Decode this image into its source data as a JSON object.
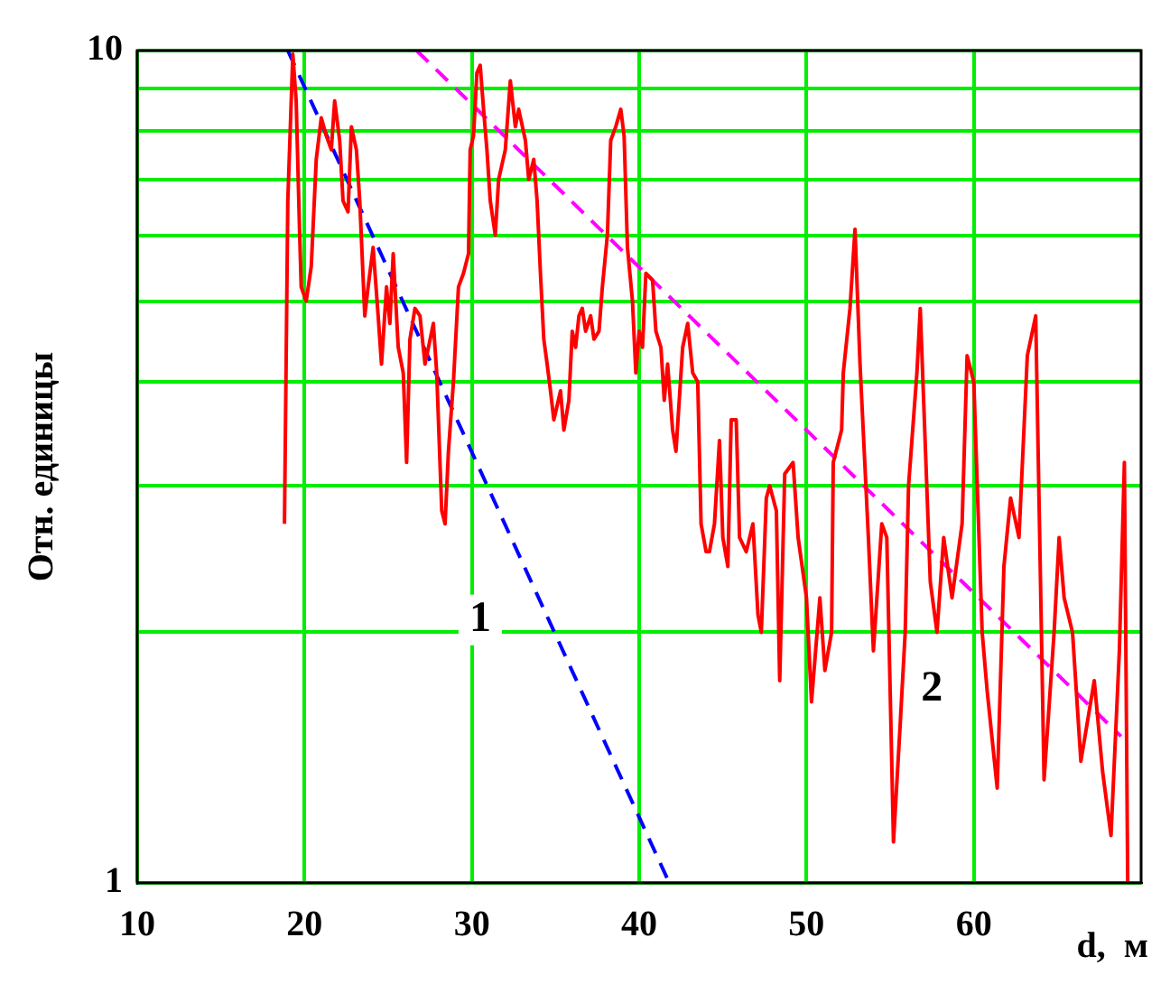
{
  "chart_data": {
    "type": "line",
    "xlabel": "d,  м",
    "ylabel": "Отн. единицы",
    "xlim": [
      10,
      70
    ],
    "xticks": [
      10,
      20,
      30,
      40,
      50,
      60
    ],
    "ylim": [
      1,
      10
    ],
    "yticks": [
      1,
      {
        "value": 2,
        "label": null
      },
      {
        "value": 3,
        "label": null
      },
      {
        "value": 4,
        "label": null
      },
      {
        "value": 5,
        "label": null
      },
      {
        "value": 6,
        "label": null
      },
      {
        "value": 7,
        "label": null
      },
      {
        "value": 8,
        "label": null
      },
      {
        "value": 9,
        "label": null
      },
      10
    ],
    "log": true,
    "grid": true,
    "legend": false,
    "series": [
      {
        "color": "#ff0000",
        "x": [
          18.8,
          19.0,
          19.3,
          19.5,
          19.7,
          19.8,
          20.1,
          20.4,
          20.7,
          21.0,
          21.3,
          21.6,
          21.8,
          22.1,
          22.3,
          22.6,
          22.8,
          23.1,
          23.3,
          23.6,
          23.8,
          24.1,
          24.4,
          24.6,
          24.9,
          25.1,
          25.3,
          25.6,
          25.9,
          26.1,
          26.3,
          26.6,
          26.9,
          27.2,
          27.7,
          27.9,
          28.2,
          28.4,
          28.6,
          28.9,
          29.2,
          29.5,
          29.8,
          29.9,
          30.1,
          30.3,
          30.5,
          30.7,
          30.9,
          31.1,
          31.4,
          31.6,
          32.0,
          32.3,
          32.6,
          32.8,
          33.2,
          33.4,
          33.7,
          33.9,
          34.1,
          34.3,
          34.5,
          34.7,
          34.9,
          35.3,
          35.5,
          35.8,
          36.0,
          36.2,
          36.4,
          36.6,
          36.8,
          37.1,
          37.3,
          37.6,
          37.8,
          38.1,
          38.3,
          38.6,
          38.9,
          39.1,
          39.3,
          39.6,
          39.8,
          40.0,
          40.2,
          40.4,
          40.8,
          41.0,
          41.3,
          41.5,
          41.7,
          42.0,
          42.2,
          42.6,
          42.9,
          43.2,
          43.5,
          43.7,
          44.0,
          44.2,
          44.5,
          44.8,
          45.0,
          45.3,
          45.5,
          45.8,
          46.0,
          46.4,
          46.8,
          47.1,
          47.3,
          47.6,
          47.8,
          48.2,
          48.4,
          48.7,
          49.2,
          49.5,
          50.0,
          50.3,
          50.8,
          51.1,
          51.5,
          51.6,
          52.1,
          52.2,
          52.6,
          52.9,
          53.2,
          53.7,
          54.0,
          54.5,
          54.8,
          55.2,
          55.6,
          55.9,
          56.1,
          56.6,
          56.8,
          57.4,
          57.8,
          58.2,
          58.7,
          59.3,
          59.6,
          60.0,
          60.5,
          60.8,
          61.4,
          61.8,
          62.2,
          62.7,
          63.2,
          63.7,
          64.2,
          64.8,
          65.1,
          65.4,
          65.9,
          66.4,
          67.2,
          67.7,
          68.2,
          68.7,
          69.0,
          69.2
        ],
        "values": [
          2.7,
          6.6,
          9.9,
          8.7,
          6.1,
          5.2,
          5.0,
          5.5,
          7.4,
          8.3,
          7.9,
          7.6,
          8.7,
          7.8,
          6.6,
          6.4,
          8.1,
          7.6,
          6.6,
          4.8,
          5.2,
          5.8,
          4.8,
          4.2,
          5.2,
          4.7,
          5.7,
          4.4,
          4.1,
          3.2,
          4.5,
          4.9,
          4.8,
          4.2,
          4.7,
          4.1,
          2.8,
          2.7,
          3.3,
          4.0,
          5.2,
          5.4,
          5.7,
          7.6,
          7.9,
          9.4,
          9.6,
          8.5,
          7.6,
          6.6,
          6.0,
          7.0,
          7.6,
          9.2,
          8.1,
          8.5,
          7.8,
          7.0,
          7.4,
          6.6,
          5.4,
          4.5,
          4.2,
          3.9,
          3.6,
          3.9,
          3.5,
          3.8,
          4.6,
          4.4,
          4.8,
          4.9,
          4.6,
          4.8,
          4.5,
          4.6,
          5.2,
          6.0,
          7.8,
          8.1,
          8.5,
          7.9,
          5.8,
          5.0,
          4.1,
          4.6,
          4.4,
          5.4,
          5.3,
          4.6,
          4.4,
          3.8,
          4.2,
          3.5,
          3.3,
          4.4,
          4.7,
          4.1,
          4.0,
          2.7,
          2.5,
          2.5,
          2.7,
          3.4,
          2.6,
          2.4,
          3.6,
          3.6,
          2.6,
          2.5,
          2.7,
          2.1,
          2.0,
          2.9,
          3.0,
          2.8,
          1.75,
          3.1,
          3.2,
          2.6,
          2.2,
          1.65,
          2.2,
          1.8,
          2.0,
          3.2,
          3.5,
          4.1,
          4.9,
          6.1,
          4.2,
          2.6,
          1.9,
          2.7,
          2.6,
          1.12,
          1.55,
          2.0,
          3.0,
          4.1,
          4.9,
          2.3,
          2.0,
          2.6,
          2.2,
          2.7,
          4.3,
          4.0,
          2.0,
          1.7,
          1.3,
          2.4,
          2.9,
          2.6,
          4.3,
          4.8,
          1.33,
          2.0,
          2.6,
          2.2,
          2.0,
          1.4,
          1.75,
          1.36,
          1.14,
          1.9,
          3.2,
          1.0
        ]
      },
      {
        "type": "line",
        "color": "#0000ff",
        "line_style": "dashed",
        "x": [
          19.0,
          41.8
        ],
        "values": [
          10,
          1
        ]
      },
      {
        "type": "line",
        "color": "#ff00ff",
        "line_style": "dashed",
        "x": [
          26.7,
          68.8
        ],
        "values": [
          10,
          1.5
        ]
      }
    ],
    "annotations": [
      {
        "text": "1",
        "x": 30.5,
        "y": 2.07
      },
      {
        "text": "2",
        "x": 57.5,
        "y": 1.71
      }
    ]
  }
}
